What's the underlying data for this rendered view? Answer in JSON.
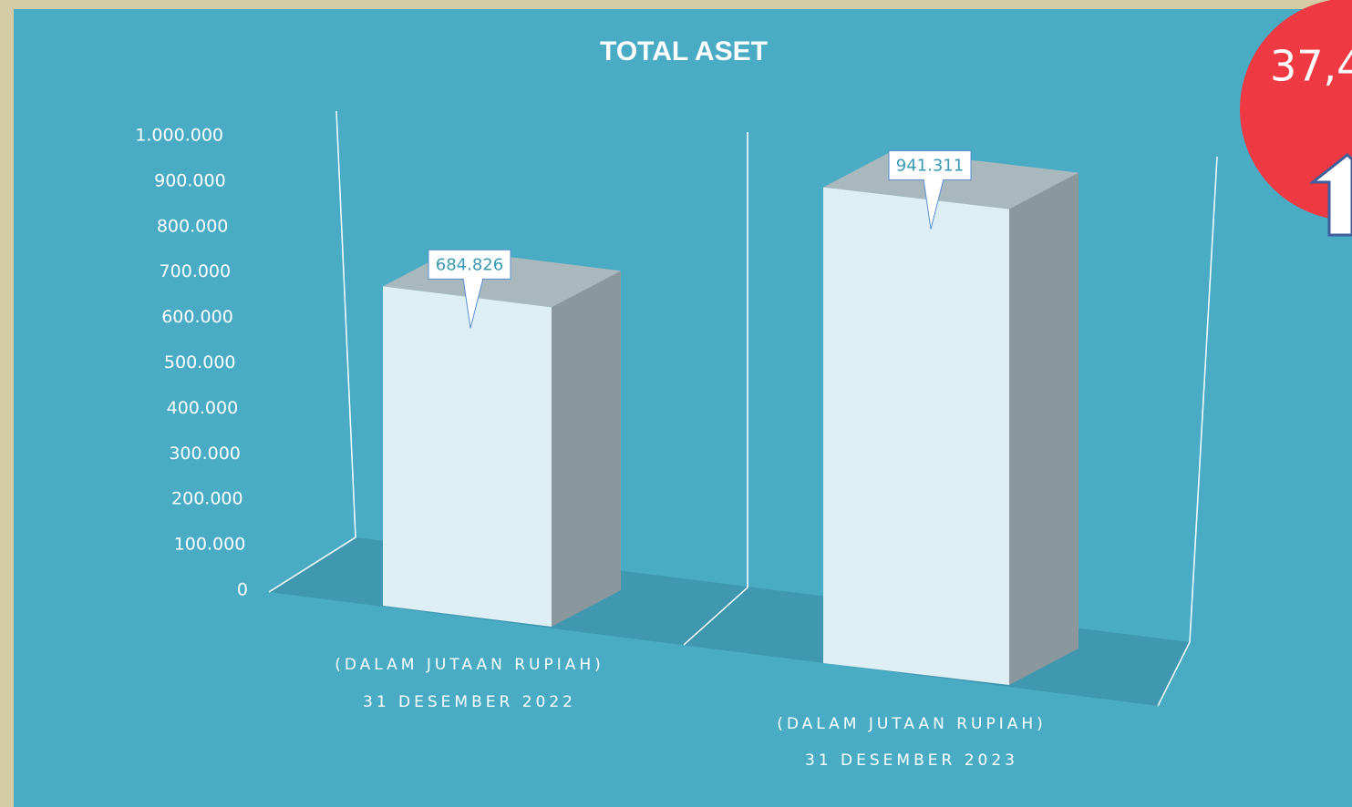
{
  "chart_data": {
    "type": "bar3d",
    "title": "TOTAL ASET",
    "categories": [
      [
        "(DALAM JUTAAN RUPIAH)",
        "31 DESEMBER 2022"
      ],
      [
        "(DALAM JUTAAN RUPIAH)",
        "31 DESEMBER 2023"
      ]
    ],
    "values": [
      684826,
      941311
    ],
    "value_labels": [
      "684.826",
      "941.311"
    ],
    "color": "#ddeff5",
    "ylim": [
      0,
      1000000
    ],
    "yticks": [
      0,
      {
        "value": 100000,
        "label": "100.000"
      },
      {
        "value": 200000,
        "label": "200.000"
      },
      {
        "value": 300000,
        "label": "300.000"
      },
      {
        "value": 400000,
        "label": "400.000"
      },
      {
        "value": 500000,
        "label": "500.000"
      },
      {
        "value": 600000,
        "label": "600.000"
      },
      {
        "value": 700000,
        "label": "700.000"
      },
      {
        "value": 800000,
        "label": "800.000"
      },
      {
        "value": 900000,
        "label": "900.000"
      },
      {
        "value": 1000000,
        "label": "1.000.000"
      }
    ],
    "grid": false,
    "annotation": "37,4"
  }
}
